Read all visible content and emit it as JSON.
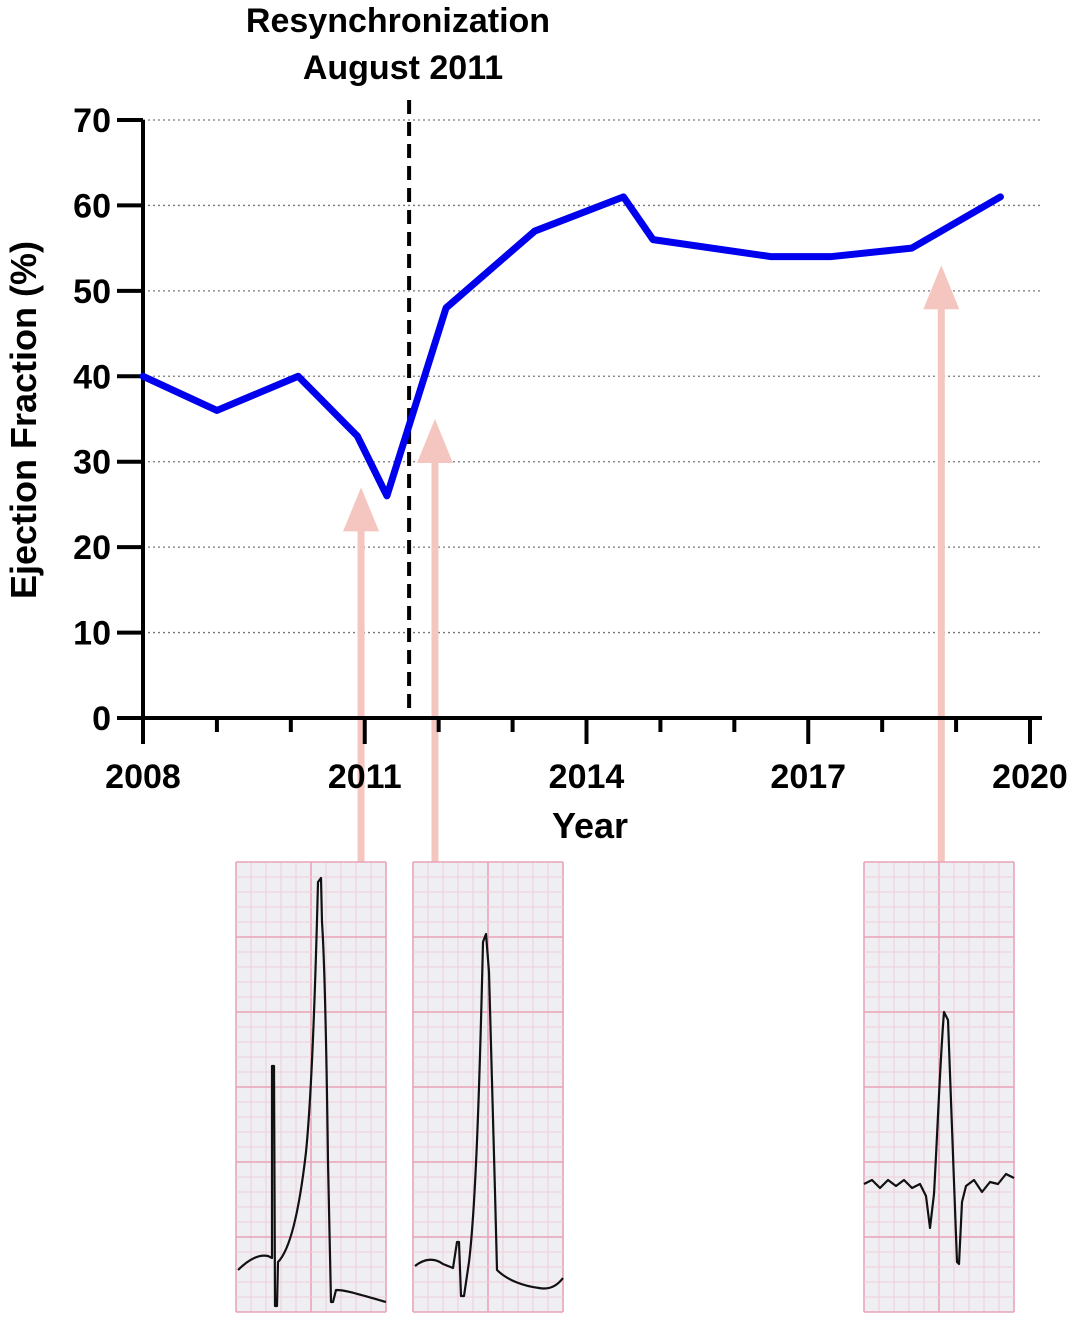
{
  "chart_data": {
    "type": "line",
    "xlabel": "Year",
    "ylabel": "Ejection Fraction (%)",
    "xlim": [
      2008,
      2020
    ],
    "ylim": [
      0,
      70
    ],
    "x_ticks": [
      2008,
      2011,
      2014,
      2017,
      2020
    ],
    "y_ticks": [
      0,
      10,
      20,
      30,
      40,
      50,
      60,
      70
    ],
    "grid": "horizontal dotted",
    "annotation": {
      "line1": "Resynchronization",
      "line2": "August 2011",
      "x": 2011.6
    },
    "series": [
      {
        "color": "#0000ee",
        "x": [
          2008.0,
          2009.0,
          2010.1,
          2010.9,
          2011.3,
          2012.1,
          2013.3,
          2014.5,
          2014.9,
          2016.5,
          2017.3,
          2018.4,
          2019.6
        ],
        "y": [
          40,
          36,
          40,
          33,
          26,
          48,
          57,
          61,
          56,
          54,
          54,
          55,
          61
        ]
      }
    ],
    "ecg_arrows": [
      {
        "name": "ecg-before-resync",
        "x": 2010.95,
        "y_tip": 27
      },
      {
        "name": "ecg-after-resync",
        "x": 2011.95,
        "y_tip": 35
      },
      {
        "name": "ecg-2018",
        "x": 2018.8,
        "y_tip": 53
      }
    ],
    "colors": {
      "line": "#0000ee",
      "arrow": "#f5c6c0",
      "ecg_grid_major": "#e8a4b8",
      "ecg_grid_minor": "#f2cdd8",
      "ecg_bg": "#efeff3"
    }
  }
}
